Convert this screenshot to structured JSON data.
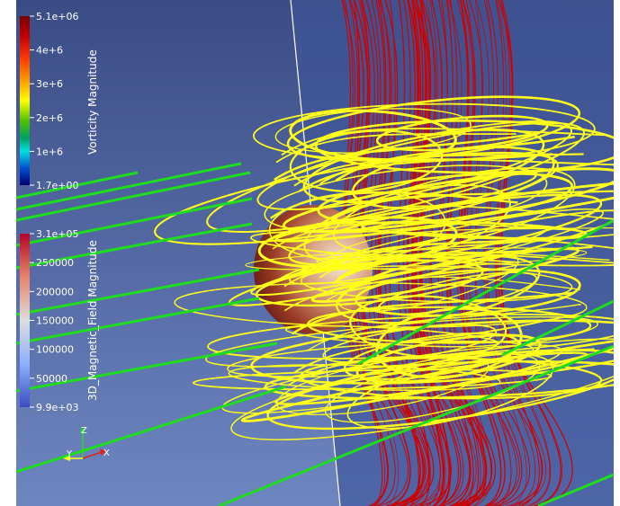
{
  "colors": {
    "background_top": "#2f3f72",
    "background_bottom": "#6b7fb3",
    "plane_left": "#5a6ea8",
    "plane_right": "#5570ac",
    "plane_edge": "#ffffff",
    "field_lines_green": "#22dd22",
    "vorticity_lines": "#ffff22",
    "magnetic_lines": "#dd0000",
    "sphere_dark": "#6b1810",
    "sphere_light": "#f2dcc6"
  },
  "colorbars": [
    {
      "title": "Vorticity Magnitude",
      "ticks": [
        "5.1e+06",
        "4e+6",
        "3e+6",
        "2e+6",
        "1e+6",
        "1.7e+00"
      ],
      "colormap": "jet-like",
      "range": [
        1.7,
        5100000
      ]
    },
    {
      "title": "3D_Magnetic_Field Magnitude",
      "ticks": [
        "3.1e+05",
        "250000",
        "200000",
        "150000",
        "100000",
        "50000",
        "9.9e+03"
      ],
      "colormap": "cool-to-warm",
      "range": [
        9900,
        310000
      ]
    }
  ],
  "axes_triad": {
    "labels": {
      "z": "Z",
      "y": "Y",
      "x": "X"
    },
    "colors": {
      "z": "#22dd22",
      "y": "#ffff22",
      "x": "#dd2222"
    }
  }
}
